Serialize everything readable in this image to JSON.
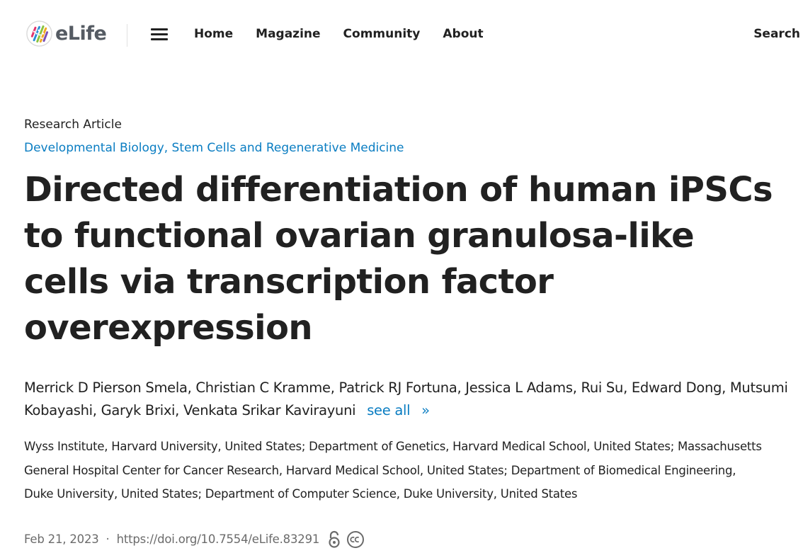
{
  "header": {
    "logo_text": "eLife",
    "logo_icon": "elife-logo-icon",
    "menu_icon": "hamburger-menu-icon",
    "nav": [
      {
        "label": "Home"
      },
      {
        "label": "Magazine"
      },
      {
        "label": "Community"
      },
      {
        "label": "About"
      }
    ],
    "search_label": "Search"
  },
  "article": {
    "type": "Research Article",
    "subjects": "Developmental Biology, Stem Cells and Regenerative Medicine",
    "title": "Directed differentiation of human iPSCs to functional ovarian granulosa-like cells via transcription factor overexpression",
    "authors": "Merrick D Pierson Smela, Christian C Kramme, Patrick RJ Fortuna, Jessica L Adams, Rui Su, Edward Dong, Mutsumi Kobayashi, Garyk Brixi, Venkata Srikar Kavirayuni",
    "see_all_label": "see all",
    "see_all_chevron": "»",
    "affiliations": "Wyss Institute, Harvard University, United States; Department of Genetics, Harvard Medical School, United States; Massachusetts General Hospital Center for Cancer Research, Harvard Medical School, United States; Department of Biomedical Engineering, Duke University, United States; Department of Computer Science, Duke University, United States",
    "date": "Feb 21, 2023",
    "separator": "·",
    "doi": "https://doi.org/10.7554/eLife.83291",
    "icons": [
      "open-access-icon",
      "creative-commons-icon"
    ]
  },
  "colors": {
    "link": "#0a7dc2",
    "text": "#212121",
    "muted": "#6b6b6b",
    "logo_text": "#555b63"
  }
}
